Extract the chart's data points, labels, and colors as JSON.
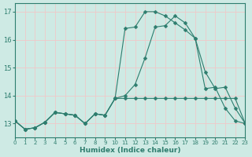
{
  "xlabel": "Humidex (Indice chaleur)",
  "ylabel": "",
  "bg_color": "#ceeae4",
  "grid_color": "#f0c8c8",
  "line_color": "#2e7d6e",
  "xmin": 0,
  "xmax": 23,
  "ymin": 12.5,
  "ymax": 17.3,
  "yticks": [
    13,
    14,
    15,
    16,
    17
  ],
  "xticks": [
    0,
    1,
    2,
    3,
    4,
    5,
    6,
    7,
    8,
    9,
    10,
    11,
    12,
    13,
    14,
    15,
    16,
    17,
    18,
    19,
    20,
    21,
    22,
    23
  ],
  "line1_x": [
    0,
    1,
    2,
    3,
    4,
    5,
    6,
    7,
    8,
    9,
    10,
    11,
    12,
    13,
    14,
    15,
    16,
    17,
    18,
    19,
    20,
    21,
    22,
    23
  ],
  "line1_y": [
    13.1,
    12.8,
    12.85,
    13.05,
    13.4,
    13.35,
    13.3,
    13.0,
    13.35,
    13.3,
    13.9,
    16.4,
    16.45,
    17.0,
    17.0,
    16.85,
    16.6,
    16.35,
    16.05,
    14.25,
    14.3,
    13.55,
    13.1,
    13.0
  ],
  "line2_x": [
    0,
    1,
    2,
    3,
    4,
    5,
    6,
    7,
    8,
    9,
    10,
    11,
    12,
    13,
    14,
    15,
    16,
    17,
    18,
    19,
    20,
    21,
    22,
    23
  ],
  "line2_y": [
    13.1,
    12.8,
    12.85,
    13.05,
    13.4,
    13.35,
    13.3,
    13.0,
    13.35,
    13.3,
    13.9,
    14.0,
    14.4,
    15.35,
    16.45,
    16.5,
    16.85,
    16.6,
    16.05,
    14.85,
    14.25,
    14.3,
    13.55,
    13.0
  ],
  "line3_x": [
    0,
    1,
    2,
    3,
    4,
    5,
    6,
    7,
    8,
    9,
    10,
    11,
    12,
    13,
    14,
    15,
    16,
    17,
    18,
    19,
    20,
    21,
    22,
    23
  ],
  "line3_y": [
    13.1,
    12.8,
    12.85,
    13.05,
    13.4,
    13.35,
    13.3,
    13.0,
    13.35,
    13.3,
    13.9,
    13.9,
    13.9,
    13.9,
    13.9,
    13.9,
    13.9,
    13.9,
    13.9,
    13.9,
    13.9,
    13.9,
    13.9,
    13.0
  ]
}
